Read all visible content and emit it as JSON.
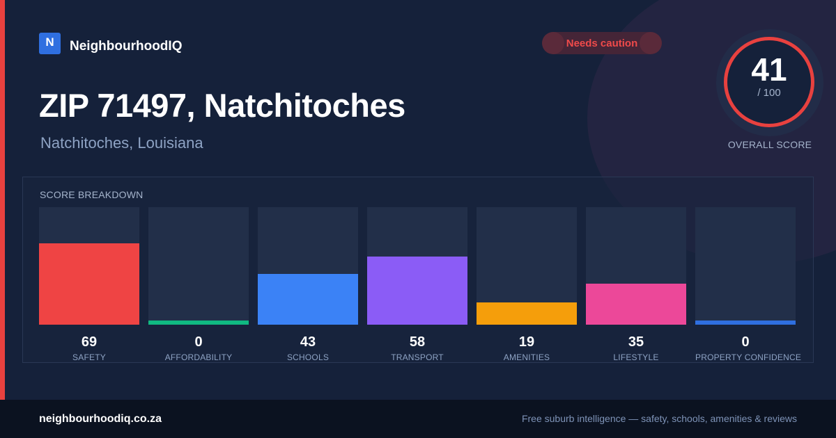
{
  "brand": {
    "logo_letter": "N",
    "name": "NeighbourhoodIQ",
    "logo_color": "#2f6fe0"
  },
  "badge": {
    "label": "Needs caution",
    "color": "#ef4a4a"
  },
  "location": {
    "title": "ZIP 71497, Natchitoches",
    "subtitle": "Natchitoches, Louisiana"
  },
  "overall": {
    "score": "41",
    "max": "/ 100",
    "label": "OVERALL SCORE",
    "ring_color": "#e8413f"
  },
  "breakdown": {
    "title": "SCORE BREAKDOWN",
    "items": [
      {
        "label": "SAFETY",
        "value": "69",
        "score": 69,
        "color": "#ef4444"
      },
      {
        "label": "AFFORDABILITY",
        "value": "0",
        "score": 0,
        "color": "#10b981"
      },
      {
        "label": "SCHOOLS",
        "value": "43",
        "score": 43,
        "color": "#3b82f6"
      },
      {
        "label": "TRANSPORT",
        "value": "58",
        "score": 58,
        "color": "#8b5cf6"
      },
      {
        "label": "AMENITIES",
        "value": "19",
        "score": 19,
        "color": "#f59e0b"
      },
      {
        "label": "LIFESTYLE",
        "value": "35",
        "score": 35,
        "color": "#ec4899"
      },
      {
        "label": "PROPERTY CONFIDENCE",
        "value": "0",
        "score": 0,
        "color": "#2f6fe0"
      }
    ]
  },
  "footer": {
    "url": "neighbourhoodiq.co.za",
    "tagline": "Free suburb intelligence — safety, schools, amenities & reviews"
  }
}
